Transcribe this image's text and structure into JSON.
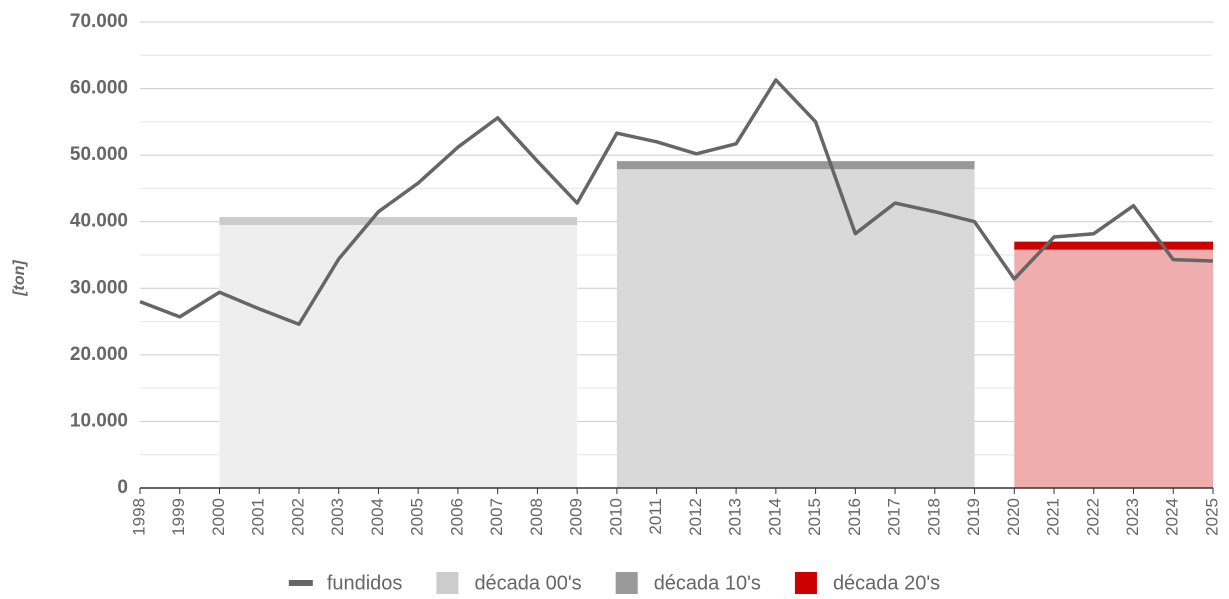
{
  "chart_data": {
    "type": "line",
    "y_label": "[ton]",
    "x": [
      1998,
      1999,
      2000,
      2001,
      2002,
      2003,
      2004,
      2005,
      2006,
      2007,
      2008,
      2009,
      2010,
      2011,
      2012,
      2013,
      2014,
      2015,
      2016,
      2017,
      2018,
      2019,
      2020,
      2021,
      2022,
      2023,
      2024,
      2025
    ],
    "xlim": [
      1998,
      2025
    ],
    "xticks": [
      1998,
      1999,
      2000,
      2001,
      2002,
      2003,
      2004,
      2005,
      2006,
      2007,
      2008,
      2009,
      2010,
      2011,
      2012,
      2013,
      2014,
      2015,
      2016,
      2017,
      2018,
      2019,
      2020,
      2021,
      2022,
      2023,
      2024,
      2025
    ],
    "ylim": [
      0,
      70000
    ],
    "yticks": [
      0,
      {
        "value": 10000,
        "label": "10.000"
      },
      {
        "value": 20000,
        "label": "20.000"
      },
      {
        "value": 30000,
        "label": "30.000"
      },
      {
        "value": 40000,
        "label": "40.000"
      },
      {
        "value": 50000,
        "label": "50.000"
      },
      {
        "value": 60000,
        "label": "60.000"
      },
      {
        "value": 70000,
        "label": "70.000"
      }
    ],
    "yticks_minor": [
      5000,
      15000,
      25000,
      35000,
      45000,
      55000,
      65000
    ],
    "grid": true,
    "legend": "bottom",
    "series": [
      {
        "name": "fundidos",
        "type": "line",
        "color": "#666666",
        "values": [
          28000,
          25700,
          29400,
          26900,
          24600,
          34400,
          41500,
          45800,
          51200,
          55600,
          49100,
          42800,
          53300,
          52000,
          50200,
          51700,
          61300,
          55000,
          38200,
          42800,
          41500,
          40000,
          31400,
          37700,
          38200,
          42400,
          34300,
          34100
        ]
      },
      {
        "name": "década 00's",
        "type": "area",
        "color": "#cccccc",
        "fill": "#eeeeee",
        "x": [
          2000,
          2009
        ],
        "values": [
          40100,
          40100
        ]
      },
      {
        "name": "década 10's",
        "type": "area",
        "color": "#999999",
        "fill": "#d9d9d9",
        "x": [
          2010,
          2019
        ],
        "values": [
          48500,
          48500
        ]
      },
      {
        "name": "década 20's",
        "type": "area",
        "color": "#cc0000",
        "fill": "#efadad",
        "x": [
          2020,
          2025
        ],
        "values": [
          36400,
          36400
        ]
      }
    ]
  }
}
